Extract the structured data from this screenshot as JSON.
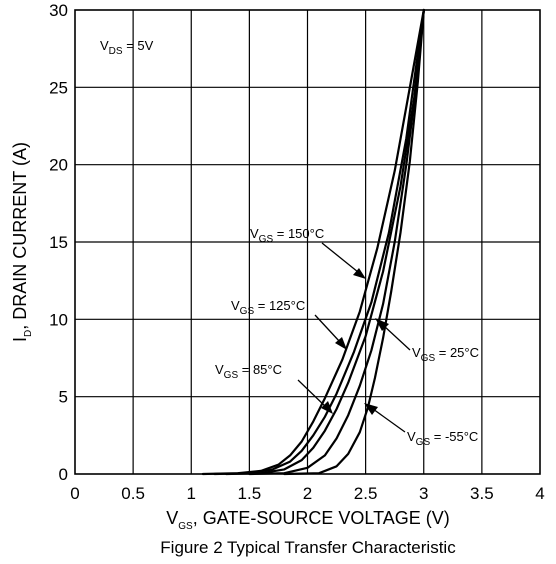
{
  "chart_data": {
    "type": "line",
    "title": "",
    "caption": "Figure 2  Typical Transfer Characteristic",
    "xlabel": {
      "main": "V",
      "sub": "GS",
      "rest": ", GATE-SOURCE VOLTAGE (V)"
    },
    "ylabel": {
      "main": "I",
      "sub": "D",
      "rest": ", DRAIN CURRENT (A)"
    },
    "xlim": [
      0,
      4
    ],
    "ylim": [
      0,
      30
    ],
    "xticks": [
      0,
      0.5,
      1,
      1.5,
      2,
      2.5,
      3,
      3.5,
      4
    ],
    "xtick_labels": [
      "0",
      "0.5",
      "1",
      "1.5",
      "2",
      "2.5",
      "3",
      "3.5",
      "4"
    ],
    "yticks": [
      0,
      5,
      10,
      15,
      20,
      25,
      30
    ],
    "ytick_labels": [
      "0",
      "5",
      "10",
      "15",
      "20",
      "25",
      "30"
    ],
    "grid": true,
    "legend": "none",
    "condition": {
      "main": "V",
      "sub": "DS",
      "rest": " = 5V"
    },
    "series": [
      {
        "label_main": "V",
        "label_sub": "GS",
        "label_rest": " = 150°C",
        "x": [
          1.1,
          1.4,
          1.6,
          1.75,
          1.85,
          1.95,
          2.05,
          2.15,
          2.3,
          2.45,
          2.6,
          2.75,
          2.9,
          3.0
        ],
        "y": [
          0,
          0.05,
          0.2,
          0.6,
          1.2,
          2.1,
          3.4,
          4.9,
          7.4,
          10.5,
          14.6,
          19.6,
          25.8,
          30
        ]
      },
      {
        "label_main": "V",
        "label_sub": "GS",
        "label_rest": " = 125°C",
        "x": [
          1.2,
          1.5,
          1.7,
          1.85,
          1.95,
          2.05,
          2.15,
          2.25,
          2.4,
          2.55,
          2.7,
          2.85,
          3.0
        ],
        "y": [
          0,
          0.05,
          0.3,
          0.8,
          1.5,
          2.5,
          3.7,
          5.2,
          7.9,
          11.1,
          15.6,
          21.7,
          30
        ]
      },
      {
        "label_main": "V",
        "label_sub": "GS",
        "label_rest": " = 85°C",
        "x": [
          1.3,
          1.6,
          1.8,
          1.95,
          2.05,
          2.15,
          2.25,
          2.35,
          2.5,
          2.65,
          2.8,
          2.92,
          3.0
        ],
        "y": [
          0,
          0.05,
          0.3,
          0.9,
          1.7,
          2.8,
          4.2,
          5.9,
          8.9,
          13.1,
          18.6,
          24.4,
          30
        ]
      },
      {
        "label_main": "V",
        "label_sub": "GS",
        "label_rest": " = 25°C",
        "x": [
          1.5,
          1.8,
          2.0,
          2.15,
          2.25,
          2.35,
          2.45,
          2.55,
          2.65,
          2.75,
          2.85,
          2.95,
          3.0
        ],
        "y": [
          0,
          0.05,
          0.4,
          1.2,
          2.3,
          3.8,
          5.7,
          8.0,
          11.0,
          15.0,
          20.0,
          26.0,
          30
        ]
      },
      {
        "label_main": "V",
        "label_sub": "GS",
        "label_rest": " = -55°C",
        "x": [
          1.8,
          2.1,
          2.25,
          2.35,
          2.45,
          2.52,
          2.58,
          2.65,
          2.72,
          2.8,
          2.88,
          2.95,
          3.0
        ],
        "y": [
          0,
          0.05,
          0.5,
          1.3,
          2.7,
          4.3,
          6.2,
          8.8,
          11.8,
          15.6,
          20.2,
          25.4,
          30
        ]
      }
    ]
  }
}
